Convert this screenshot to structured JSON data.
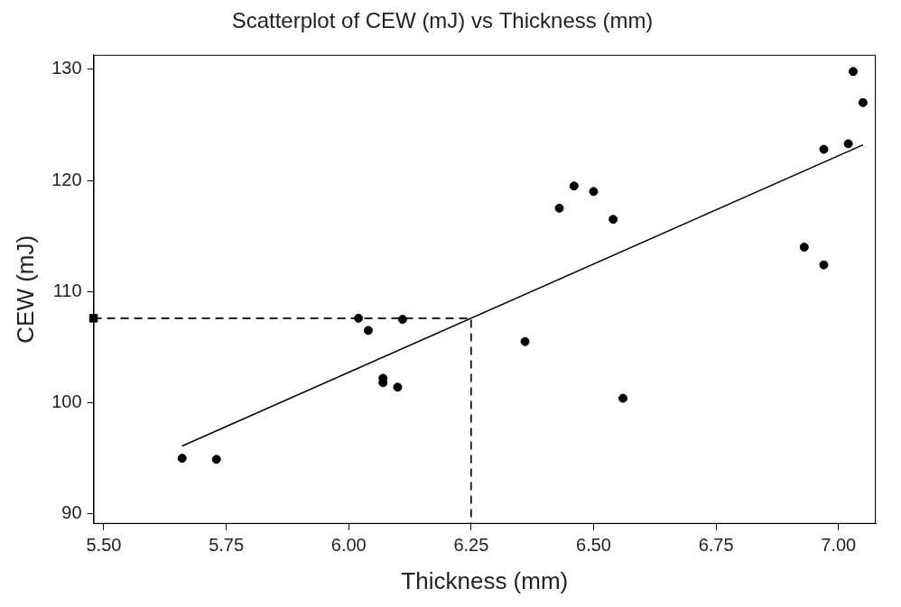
{
  "chart_data": {
    "type": "scatter",
    "title": "Scatterplot of CEW (mJ) vs Thickness (mm)",
    "x_label": "Thickness (mm)",
    "y_label": "CEW (mJ)",
    "xlim": [
      5.479,
      7.076
    ],
    "ylim": [
      89.1,
      131.3
    ],
    "xticks": [
      {
        "value": 5.5,
        "label": "5.50"
      },
      {
        "value": 5.75,
        "label": "5.75"
      },
      {
        "value": 6,
        "label": "6.00"
      },
      {
        "value": 6.25,
        "label": "6.25"
      },
      {
        "value": 6.5,
        "label": "6.50"
      },
      {
        "value": 6.75,
        "label": "6.75"
      },
      {
        "value": 7,
        "label": "7.00"
      }
    ],
    "yticks": [
      90,
      100,
      110,
      120,
      130
    ],
    "grid": false,
    "color": "#000000",
    "series": [
      {
        "type": "scatter",
        "marker": "circle",
        "color": "#000000",
        "x": [
          5.66,
          5.73,
          6.02,
          6.04,
          6.07,
          6.07,
          6.1,
          6.11,
          6.36,
          6.43,
          6.46,
          6.5,
          6.54,
          6.56,
          6.93,
          6.97,
          6.97,
          7.02,
          7.03,
          7.05
        ],
        "values": [
          95.0,
          94.9,
          107.6,
          106.5,
          102.2,
          101.8,
          101.4,
          107.5,
          105.5,
          117.5,
          119.5,
          119.0,
          116.5,
          100.4,
          114.0,
          112.4,
          122.8,
          123.3,
          129.8,
          127.0
        ]
      },
      {
        "type": "line",
        "line_style": "solid",
        "color": "#000000",
        "x": [
          5.66,
          7.05
        ],
        "values": [
          96.1,
          123.2
        ]
      },
      {
        "type": "line",
        "line_style": "dashed",
        "color": "#000000",
        "x": [
          5.479,
          6.25,
          6.25
        ],
        "values": [
          107.6,
          107.6,
          89.1
        ]
      },
      {
        "type": "scatter",
        "marker": "square",
        "color": "#000000",
        "x": [
          5.479
        ],
        "values": [
          107.6
        ]
      }
    ]
  }
}
